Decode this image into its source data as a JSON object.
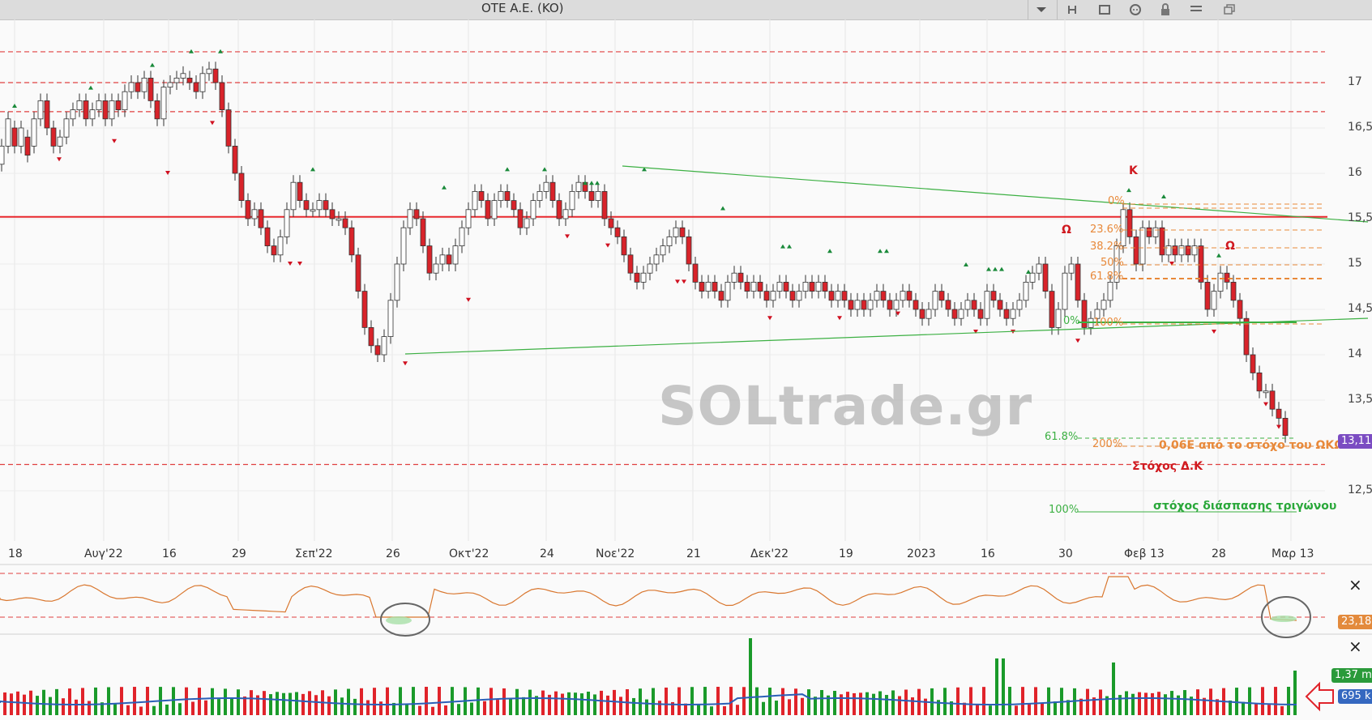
{
  "window": {
    "title": "OTE A.E. (KO)",
    "icons": [
      "chevron-down-icon",
      "h-icon",
      "square-icon",
      "chat-icon",
      "lock-icon",
      "menu-icon",
      "restore-window-icon"
    ]
  },
  "watermark": "SOLtrade.gr",
  "colors": {
    "up_candle": "#ffffff",
    "down_candle": "#d8232a",
    "resistance_line": "#e8272c",
    "triangle_line": "#3cb043",
    "fib_text": "#e8893a",
    "rsi_line": "#d9772f",
    "volume_up": "#1a9a2a",
    "volume_down": "#e0232a",
    "volume_ma": "#2b5fb8",
    "dashed_level": "#e04040",
    "fractal_up": "#1a8a3a",
    "fractal_down": "#d01020"
  },
  "x_axis": {
    "labels": [
      "18",
      "Αυγ'22",
      "16",
      "29",
      "Σεπ'22",
      "26",
      "Οκτ'22",
      "24",
      "Νοε'22",
      "21",
      "Δεκ'22",
      "19",
      "2023",
      "16",
      "30",
      "Φεβ 13",
      "28",
      "Μαρ 13"
    ]
  },
  "y_axis": {
    "labels": [
      "17",
      "16,5",
      "16",
      "15,5",
      "15",
      "14,5",
      "14",
      "13,5",
      "12,5"
    ],
    "current_price_badge": "13,11"
  },
  "annotations": {
    "K": "K",
    "omega1": "Ω",
    "omega2": "Ω",
    "fib_left": [
      "0%",
      "23.6%",
      "38.2%",
      "50%",
      "61.8%",
      "100%"
    ],
    "fib_left_zero_low": "0%",
    "fib_200": "200%",
    "fib_618_low": "61.8%",
    "fib_100_low": "100%",
    "target_hs_note": "0,06E από το στόχο του ΩΚΩ",
    "target_dk": "Στόχος Δ.Κ",
    "target_triangle": "στόχος διάσπασης τριγώνου"
  },
  "rsi_panel": {
    "value_badge": "23,18",
    "close_label": "×"
  },
  "volume_panel": {
    "value_badge_volume": "1,37 m",
    "value_badge_ma": "695 k",
    "close_label": "×"
  },
  "chart_data": {
    "type": "candlestick",
    "price_ylim": [
      12.0,
      17.3
    ],
    "resistance_level": 15.52,
    "dashed_levels": [
      17.34,
      17.0,
      16.68,
      12.79
    ],
    "triangle_upper": [
      [
        15.99,
        "Nov'22 start"
      ],
      [
        15.47,
        "Mar 13 end"
      ]
    ],
    "triangle_lower": [
      [
        13.98,
        "Sep 26"
      ],
      [
        14.36,
        "Mar 13"
      ]
    ],
    "last_close": 13.11,
    "rsi_last": 23.18,
    "volume_last": "1,37 m",
    "volume_ma_last": "695 k"
  }
}
